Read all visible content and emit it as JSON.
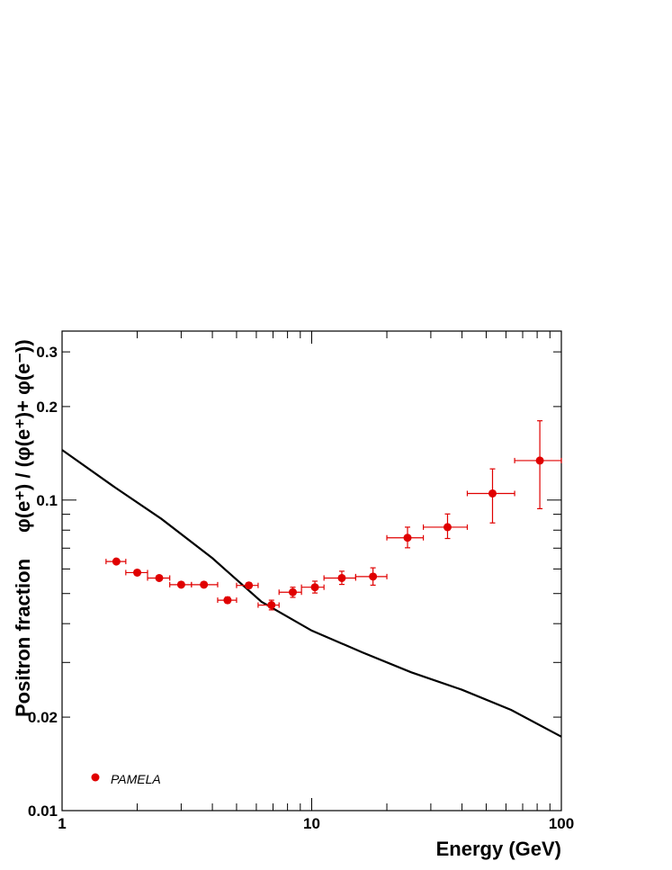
{
  "chart_data": {
    "type": "scatter",
    "xscale": "log",
    "yscale": "log",
    "xlim": [
      1,
      100
    ],
    "ylim": [
      0.01,
      0.35
    ],
    "xlabel": "Energy (GeV)",
    "ylabel_main": "Positron fraction",
    "ylabel_formula": "φ(e⁺) / (φ(e⁺)+ φ(e⁻))",
    "x_ticks": [
      {
        "value": 1,
        "label": "1"
      },
      {
        "value": 10,
        "label": "10"
      },
      {
        "value": 100,
        "label": "100"
      }
    ],
    "y_ticks": [
      {
        "value": 0.01,
        "label": "0.01"
      },
      {
        "value": 0.02,
        "label": "0.02"
      },
      {
        "value": 0.1,
        "label": "0.1"
      },
      {
        "value": 0.2,
        "label": "0.2"
      },
      {
        "value": 0.3,
        "label": "0.3"
      }
    ],
    "grid": false,
    "legend": {
      "position": "bottom-left",
      "entries": [
        {
          "name": "PAMELA",
          "color": "#e00000"
        }
      ]
    },
    "series": [
      {
        "name": "PAMELA",
        "kind": "points_with_errors",
        "color": "#e00000",
        "points": [
          {
            "x": 1.65,
            "y": 0.0634,
            "xlo": 1.5,
            "xhi": 1.8,
            "ylo": 0.0623,
            "yhi": 0.0645
          },
          {
            "x": 2.0,
            "y": 0.0584,
            "xlo": 1.8,
            "xhi": 2.2,
            "ylo": 0.0575,
            "yhi": 0.0593
          },
          {
            "x": 2.45,
            "y": 0.0561,
            "xlo": 2.2,
            "xhi": 2.7,
            "ylo": 0.0553,
            "yhi": 0.0569
          },
          {
            "x": 3.0,
            "y": 0.0534,
            "xlo": 2.7,
            "xhi": 3.3,
            "ylo": 0.0526,
            "yhi": 0.0542
          },
          {
            "x": 3.7,
            "y": 0.0534,
            "xlo": 3.3,
            "xhi": 4.2,
            "ylo": 0.0524,
            "yhi": 0.0544
          },
          {
            "x": 4.6,
            "y": 0.0476,
            "xlo": 4.2,
            "xhi": 5.0,
            "ylo": 0.0466,
            "yhi": 0.0487
          },
          {
            "x": 5.6,
            "y": 0.0531,
            "xlo": 5.0,
            "xhi": 6.1,
            "ylo": 0.052,
            "yhi": 0.0542
          },
          {
            "x": 6.9,
            "y": 0.0459,
            "xlo": 6.1,
            "xhi": 7.4,
            "ylo": 0.0443,
            "yhi": 0.0476
          },
          {
            "x": 8.4,
            "y": 0.0505,
            "xlo": 7.4,
            "xhi": 9.1,
            "ylo": 0.0486,
            "yhi": 0.0524
          },
          {
            "x": 10.3,
            "y": 0.0524,
            "xlo": 9.1,
            "xhi": 11.2,
            "ylo": 0.0502,
            "yhi": 0.0548
          },
          {
            "x": 13.2,
            "y": 0.0561,
            "xlo": 11.2,
            "xhi": 15.0,
            "ylo": 0.0535,
            "yhi": 0.059
          },
          {
            "x": 17.6,
            "y": 0.0567,
            "xlo": 15.0,
            "xhi": 20.0,
            "ylo": 0.0532,
            "yhi": 0.0605
          },
          {
            "x": 24.2,
            "y": 0.0756,
            "xlo": 20.0,
            "xhi": 28.0,
            "ylo": 0.0702,
            "yhi": 0.0818
          },
          {
            "x": 35.0,
            "y": 0.0818,
            "xlo": 28.0,
            "xhi": 42.0,
            "ylo": 0.0752,
            "yhi": 0.0902
          },
          {
            "x": 53.0,
            "y": 0.105,
            "xlo": 42.0,
            "xhi": 65.0,
            "ylo": 0.0844,
            "yhi": 0.126
          },
          {
            "x": 82.0,
            "y": 0.134,
            "xlo": 65.0,
            "xhi": 100.0,
            "ylo": 0.0938,
            "yhi": 0.18
          }
        ]
      },
      {
        "name": "",
        "kind": "curve",
        "color": "#000000",
        "points": [
          {
            "x": 1.0,
            "y": 0.145
          },
          {
            "x": 1.6,
            "y": 0.111
          },
          {
            "x": 2.5,
            "y": 0.087
          },
          {
            "x": 4.0,
            "y": 0.065
          },
          {
            "x": 6.3,
            "y": 0.047
          },
          {
            "x": 10.0,
            "y": 0.038
          },
          {
            "x": 16.0,
            "y": 0.0323
          },
          {
            "x": 25.0,
            "y": 0.0279
          },
          {
            "x": 40.0,
            "y": 0.0245
          },
          {
            "x": 63.0,
            "y": 0.0211
          },
          {
            "x": 100.0,
            "y": 0.0173
          }
        ]
      }
    ]
  }
}
